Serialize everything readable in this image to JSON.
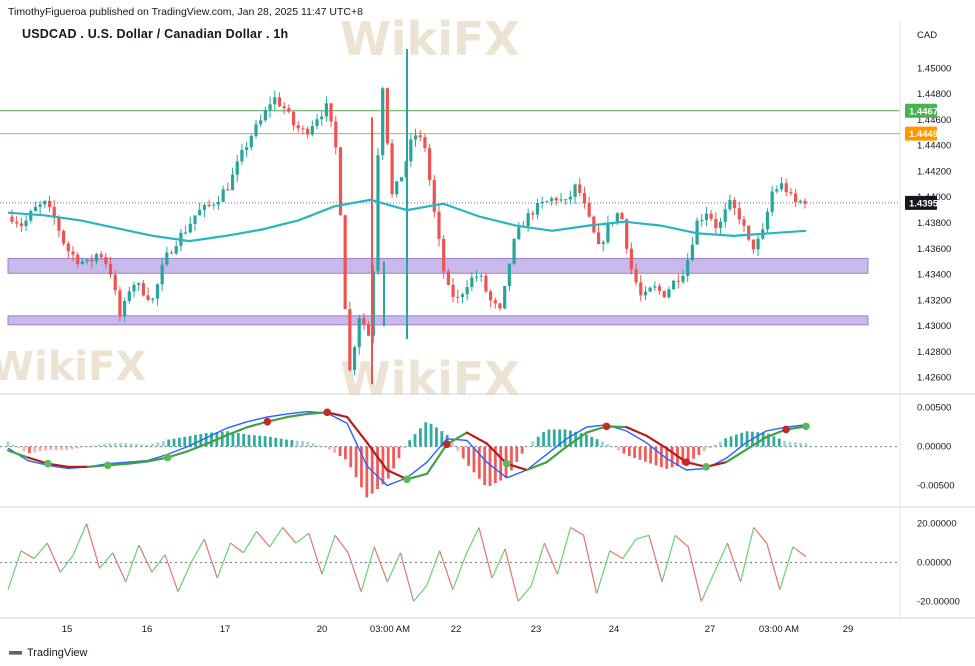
{
  "header": {
    "published": "TimothyFigueroa published on TradingView.com, Jan 28, 2025 11:47 UTC+8",
    "title": "USDCAD . U.S. Dollar / Canadian Dollar . 1h",
    "currency": "CAD"
  },
  "footer": {
    "brand": "TradingView",
    "logo_icon": "tradingview-logo-icon"
  },
  "watermark": "WikiFX",
  "colors": {
    "up": "#26a69a",
    "down": "#ef5350",
    "ma": "#26b5c2",
    "zone": "#9c7fd9",
    "green_line": "#4caf50",
    "orange_line": "#ff9800",
    "macd": "#2962ff",
    "signal_green": "#43a047",
    "signal_red": "#b71c1c"
  },
  "chart_data": [
    {
      "type": "candlestick",
      "name": "USDCAD 1h price",
      "x_ticks": [
        "15",
        "16",
        "17",
        "20",
        "03:00 AM",
        "22",
        "23",
        "24",
        "27",
        "03:00 AM",
        "29"
      ],
      "y_ticks": [
        "1.45000",
        "1.44800",
        "1.44600",
        "1.44400",
        "1.44200",
        "1.44000",
        "1.43800",
        "1.43600",
        "1.43400",
        "1.43200",
        "1.43000",
        "1.42800",
        "1.42600"
      ],
      "ylim": [
        1.4252,
        1.4522
      ],
      "close_path": [
        1.4385,
        1.4378,
        1.439,
        1.4395,
        1.4382,
        1.436,
        1.4352,
        1.4348,
        1.4358,
        1.4345,
        1.4305,
        1.4335,
        1.4328,
        1.432,
        1.435,
        1.4365,
        1.4375,
        1.4388,
        1.4392,
        1.44,
        1.441,
        1.443,
        1.4448,
        1.446,
        1.4478,
        1.447,
        1.4455,
        1.445,
        1.4462,
        1.447,
        1.443,
        1.426,
        1.431,
        1.429,
        1.45,
        1.44,
        1.442,
        1.445,
        1.444,
        1.438,
        1.433,
        1.432,
        1.4335,
        1.434,
        1.432,
        1.431,
        1.436,
        1.438,
        1.439,
        1.4395,
        1.44,
        1.4395,
        1.441,
        1.4385,
        1.436,
        1.438,
        1.439,
        1.4345,
        1.432,
        1.433,
        1.4325,
        1.4335,
        1.4345,
        1.438,
        1.439,
        1.4375,
        1.4395,
        1.4385,
        1.436,
        1.4368,
        1.4405,
        1.441,
        1.4395,
        1.4398
      ],
      "moving_average": [
        1.4388,
        1.4386,
        1.4382,
        1.4376,
        1.437,
        1.4366,
        1.437,
        1.4375,
        1.4382,
        1.4393,
        1.4398,
        1.439,
        1.4395,
        1.4385,
        1.4378,
        1.4374,
        1.4378,
        1.4381,
        1.4378,
        1.4372,
        1.437,
        1.4372,
        1.4374
      ],
      "lines": [
        {
          "price": 1.44671,
          "label": "1.44671",
          "color": "green"
        },
        {
          "price": 1.44494,
          "label": "1.44494",
          "color": "orange"
        },
        {
          "price": 1.43956,
          "label": "1.43956",
          "color": "dark",
          "style": "dotted"
        }
      ],
      "zones": [
        {
          "from": 1.4341,
          "to": 1.43525
        },
        {
          "from": 1.4302,
          "to": 1.4308
        }
      ]
    },
    {
      "type": "macd",
      "y_ticks": [
        "0.00500",
        "0.00000",
        "-0.00500"
      ],
      "ylim": [
        -0.0075,
        0.0065
      ],
      "macd_line": [
        -0.0002,
        -0.0018,
        -0.0024,
        -0.0028,
        -0.0026,
        -0.0022,
        -0.002,
        -0.0018,
        -0.001,
        0.0,
        0.0012,
        0.0024,
        0.0032,
        0.0038,
        0.0042,
        0.0045,
        0.0043,
        0.003,
        -0.0025,
        -0.005,
        -0.004,
        -0.002,
        0.001,
        0.0008,
        -0.002,
        -0.004,
        -0.003,
        -0.001,
        0.001,
        0.0025,
        0.0028,
        0.002,
        0.0005,
        -0.0015,
        -0.003,
        -0.0028,
        -0.0015,
        0.0005,
        0.002,
        0.0025,
        0.0028
      ],
      "signal_line": [
        -0.0005,
        -0.0014,
        -0.0022,
        -0.0026,
        -0.0026,
        -0.0024,
        -0.0022,
        -0.0019,
        -0.0014,
        -0.0006,
        0.0004,
        0.0015,
        0.0025,
        0.0032,
        0.0038,
        0.0042,
        0.0044,
        0.0038,
        0.0005,
        -0.003,
        -0.0042,
        -0.0035,
        0.0003,
        0.0018,
        0.0004,
        -0.0022,
        -0.003,
        -0.002,
        0.0,
        0.0018,
        0.0026,
        0.0025,
        0.0014,
        -0.0002,
        -0.002,
        -0.0026,
        -0.002,
        -0.0004,
        0.0012,
        0.0022,
        0.0026
      ],
      "cross_points": [
        {
          "i": 2,
          "kind": "bull"
        },
        {
          "i": 5,
          "kind": "bull"
        },
        {
          "i": 8,
          "kind": "bull"
        },
        {
          "i": 13,
          "kind": "bear"
        },
        {
          "i": 16,
          "kind": "bear"
        },
        {
          "i": 20,
          "kind": "bull"
        },
        {
          "i": 22,
          "kind": "bear"
        },
        {
          "i": 25,
          "kind": "bull"
        },
        {
          "i": 30,
          "kind": "bear"
        },
        {
          "i": 34,
          "kind": "bear"
        },
        {
          "i": 35,
          "kind": "bull"
        },
        {
          "i": 39,
          "kind": "bear"
        },
        {
          "i": 40,
          "kind": "bull"
        }
      ]
    },
    {
      "type": "oscillator",
      "y_ticks": [
        "20.00000",
        "0.00000",
        "-20.00000"
      ],
      "ylim": [
        -27,
        27
      ],
      "values": [
        -14,
        6,
        2,
        10,
        -5,
        4,
        20,
        -3,
        5,
        -10,
        9,
        -5,
        4,
        -15,
        0,
        12,
        -8,
        10,
        5,
        16,
        8,
        18,
        10,
        15,
        -6,
        14,
        5,
        -15,
        8,
        -10,
        5,
        -20,
        -12,
        6,
        -14,
        4,
        18,
        -8,
        7,
        -20,
        -12,
        10,
        -6,
        18,
        14,
        -16,
        6,
        2,
        12,
        14,
        -10,
        14,
        8,
        -20,
        -5,
        10,
        -10,
        18,
        10,
        -14,
        8,
        3
      ]
    }
  ]
}
